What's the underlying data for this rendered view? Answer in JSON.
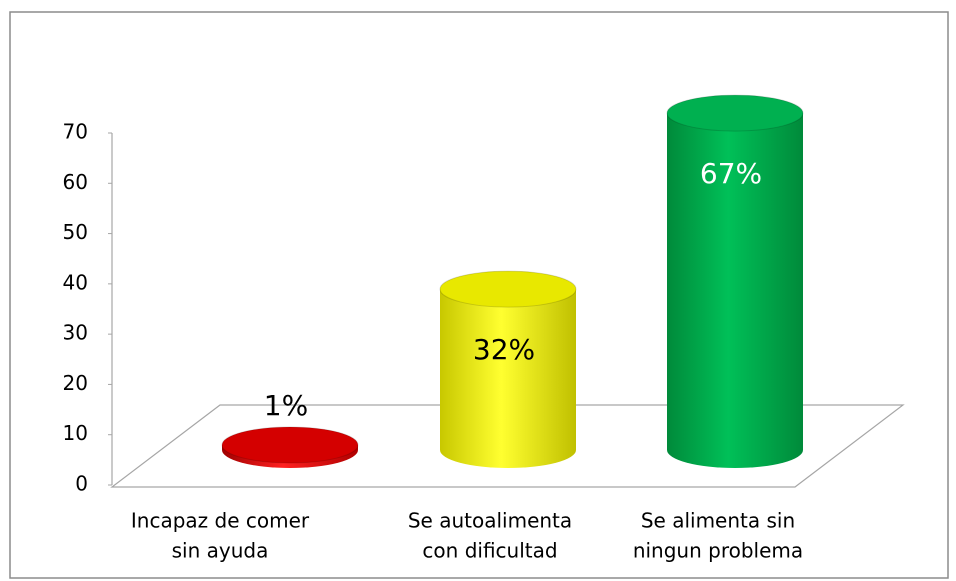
{
  "chart_data": {
    "type": "bar3d",
    "categories": [
      [
        "Incapaz de comer",
        "sin ayuda"
      ],
      [
        "Se autoalimenta",
        "con dificultad"
      ],
      [
        "Se alimenta sin",
        "ningun problema"
      ]
    ],
    "values": [
      1,
      32,
      67
    ],
    "value_labels": [
      "1%",
      "32%",
      "67%"
    ],
    "colors": [
      "#d40000",
      "#e8e800",
      "#00b050"
    ],
    "value_label_colors": [
      "#000000",
      "#000000",
      "#ffffff"
    ],
    "ylim": [
      0,
      70
    ],
    "yticks": [
      0,
      10,
      20,
      30,
      40,
      50,
      60,
      70
    ],
    "grid": false
  }
}
